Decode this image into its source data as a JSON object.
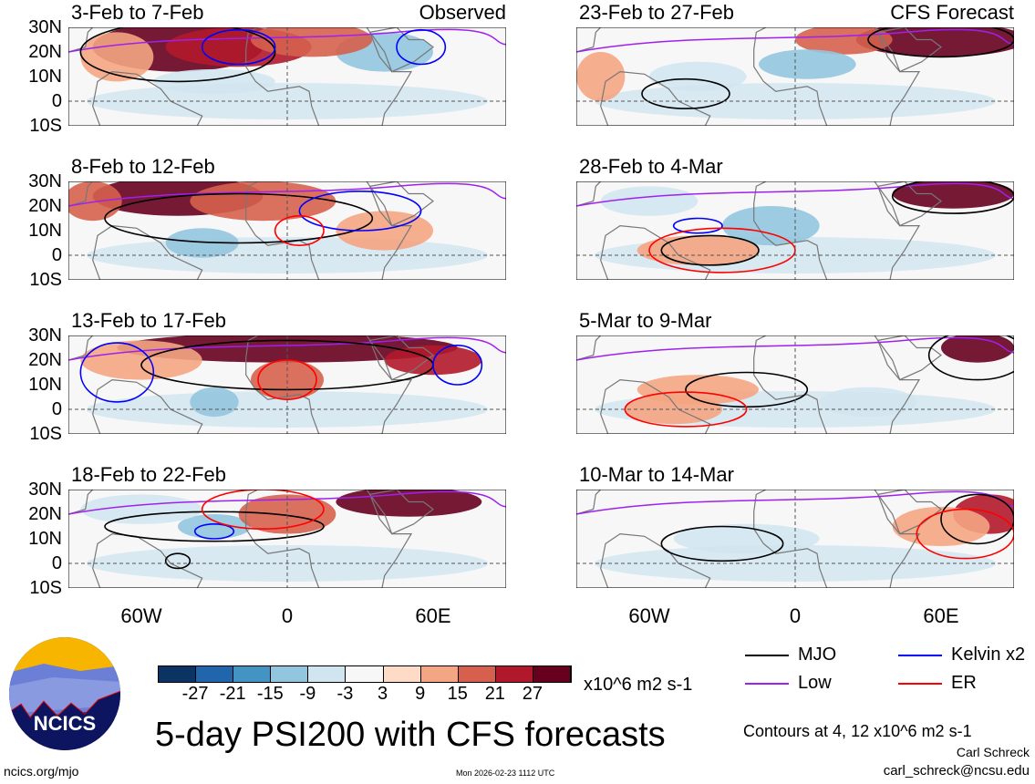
{
  "panels": [
    {
      "title": "3-Feb to 7-Feb",
      "tag": "Observed"
    },
    {
      "title": "23-Feb to 27-Feb",
      "tag": "CFS Forecast"
    },
    {
      "title": "8-Feb to 12-Feb",
      "tag": ""
    },
    {
      "title": "28-Feb to 4-Mar",
      "tag": ""
    },
    {
      "title": "13-Feb to 17-Feb",
      "tag": ""
    },
    {
      "title": "5-Mar to 9-Mar",
      "tag": ""
    },
    {
      "title": "18-Feb to 22-Feb",
      "tag": ""
    },
    {
      "title": "10-Mar to 14-Mar",
      "tag": ""
    }
  ],
  "lat_labels": [
    "30N",
    "20N",
    "10N",
    "0",
    "10S"
  ],
  "lon_labels": [
    "60W",
    "0",
    "60E"
  ],
  "colorbar": {
    "colors": [
      "#0b3363",
      "#2166ac",
      "#4393c3",
      "#92c5de",
      "#d1e5f0",
      "#f7f7f7",
      "#fddbc7",
      "#f4a582",
      "#d6604d",
      "#b2182b",
      "#67001f"
    ],
    "labels": [
      "-27",
      "-21",
      "-15",
      "-9",
      "-3",
      "3",
      "9",
      "15",
      "21",
      "27"
    ],
    "units": "x10^6 m2 s-1"
  },
  "legend": [
    {
      "label": "MJO",
      "color": "#000000"
    },
    {
      "label": "Kelvin x2",
      "color": "#0000ff"
    },
    {
      "label": "Low",
      "color": "#a020f0"
    },
    {
      "label": "ER",
      "color": "#ff0000"
    }
  ],
  "title": "5-day PSI200 with CFS forecasts",
  "contours_note": "Contours at 4, 12 x10^6 m2 s-1",
  "author": "Carl Schreck",
  "email": "carl_schreck@ncsu.edu",
  "website": "ncics.org/mjo",
  "timestamp": "Mon 2026-02-23 1112 UTC",
  "logo_text": "NCICS"
}
